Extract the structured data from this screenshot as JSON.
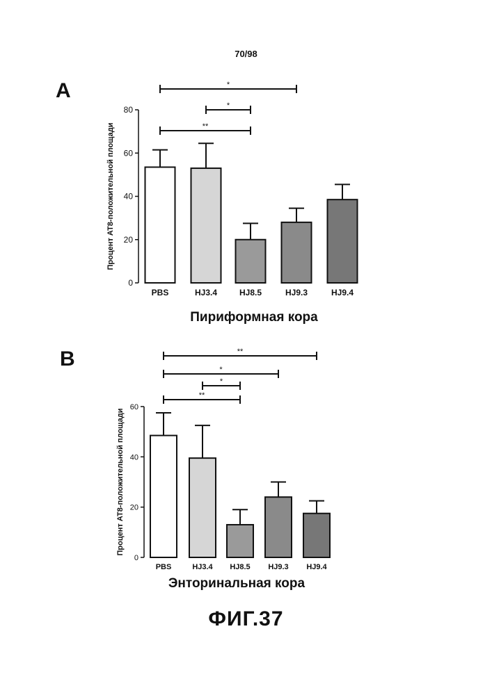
{
  "page_number": "70/98",
  "figure_caption": "ФИГ.37",
  "panel_labels": [
    "A",
    "B"
  ],
  "chart_data": [
    {
      "type": "bar",
      "panel": "A",
      "categories": [
        "PBS",
        "HJ3.4",
        "HJ8.5",
        "HJ9.3",
        "HJ9.4"
      ],
      "values": [
        53.5,
        53,
        20,
        28,
        38.5
      ],
      "errors": [
        8,
        11.5,
        7.5,
        6.5,
        7
      ],
      "ylabel": "Процент AT8-положительной площади",
      "xlabel": "Пириформная кора",
      "yticks": [
        0,
        20,
        40,
        60,
        80
      ],
      "ylim": [
        0,
        80
      ],
      "bar_colors": [
        "#ffffff",
        "#d6d6d6",
        "#9a9a9a",
        "#8a8a8a",
        "#777777"
      ],
      "significance": [
        {
          "from": "PBS",
          "to": "HJ9.3",
          "label": "*"
        },
        {
          "from": "HJ3.4",
          "to": "HJ8.5",
          "label": "*"
        },
        {
          "from": "PBS",
          "to": "HJ8.5",
          "label": "**"
        }
      ]
    },
    {
      "type": "bar",
      "panel": "B",
      "categories": [
        "PBS",
        "HJ3.4",
        "HJ8.5",
        "HJ9.3",
        "HJ9.4"
      ],
      "values": [
        48.5,
        39.5,
        13,
        24,
        17.5
      ],
      "errors": [
        9,
        13,
        6,
        6,
        5
      ],
      "ylabel": "Процент AT8-положительной площади",
      "xlabel": "Энторинальная кора",
      "yticks": [
        0,
        20,
        40,
        60
      ],
      "ylim": [
        0,
        60
      ],
      "bar_colors": [
        "#ffffff",
        "#d6d6d6",
        "#9a9a9a",
        "#8a8a8a",
        "#777777"
      ],
      "significance": [
        {
          "from": "PBS",
          "to": "HJ9.4",
          "label": "**"
        },
        {
          "from": "PBS",
          "to": "HJ9.3",
          "label": "*"
        },
        {
          "from": "HJ3.4",
          "to": "HJ8.5",
          "label": "*"
        },
        {
          "from": "PBS",
          "to": "HJ8.5",
          "label": "**"
        }
      ]
    }
  ]
}
